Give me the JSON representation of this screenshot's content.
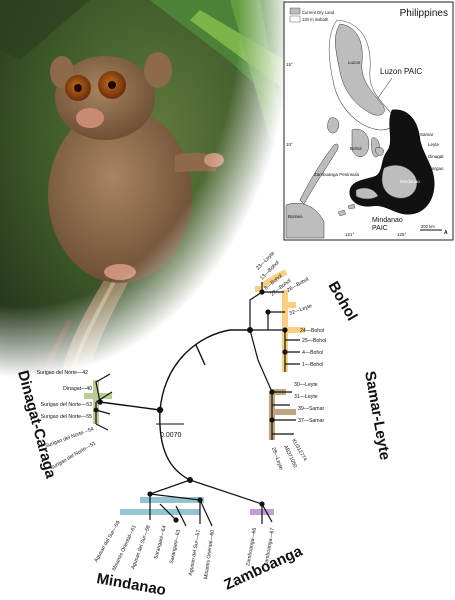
{
  "figure": {
    "map": {
      "title": "Philippines",
      "legend": [
        "Current Dry Land",
        "120 m isobath"
      ],
      "lat_ticks": [
        "15°",
        "10°",
        "5°"
      ],
      "lon_ticks": [
        "121°",
        "125°"
      ],
      "places": {
        "luzon": "Luzon",
        "luzon_paic": "Luzon PAIC",
        "samar": "Samar",
        "leyte": "Leyte",
        "dinagat": "Dinagat",
        "siargao": "Siargao",
        "bohol": "Bohol",
        "mindanao": "Mindanao",
        "zamboanga_peninsula": "Zamboanga Peninsula",
        "borneo": "Borneo",
        "mindanao_paic": "Mindanao\nPAIC"
      },
      "scale_label": "200 km",
      "north_label": "A"
    },
    "tree": {
      "scale_bar": "0.0070",
      "clade_labels": {
        "bohol": "Bohol",
        "samar_leyte": "Samar-Leyte",
        "dinagat_caraga": "Dinagat-Caraga",
        "mindanao": "Mindanao",
        "zamboanga": "Zamboanga"
      },
      "colors": {
        "bohol": "#f6a81e",
        "samar_leyte": "#8a5a1c",
        "dinagat_caraga": "#7a9a2c",
        "mindanao": "#2a8aa0",
        "zamboanga": "#8a3fb0"
      },
      "tips": {
        "bohol": [
          "23—Leyte",
          "13—Bohol",
          "8—Bohol",
          "27—Bohol",
          "26—Bohol",
          "32—Leyte",
          "24—Bohol",
          "25—Bohol",
          "4—Bohol",
          "1—Bohol"
        ],
        "samar_leyte": [
          "30—Leyte",
          "31—Leyte",
          "39—Samar",
          "37—Samar",
          "KU312774",
          "AB371050",
          "28—Leyte"
        ],
        "dinagat_caraga": [
          "Surigao del Norte—42",
          "Dinagat—40",
          "Surigao del Norte—53",
          "Surigao del Norte—55",
          "Surigao del Norte—54",
          "Surigao del Norte—51"
        ],
        "mindanao": [
          "Agusan del Sur—59",
          "Misamis Oriental—61",
          "Agusan del Sur—58",
          "Sarangani—64",
          "Sarangani—63",
          "Agusan del Sur—57",
          "Misamis Oriental—60"
        ],
        "zamboanga": [
          "Zamboanga—66",
          "Zamboanga—67"
        ]
      }
    }
  }
}
